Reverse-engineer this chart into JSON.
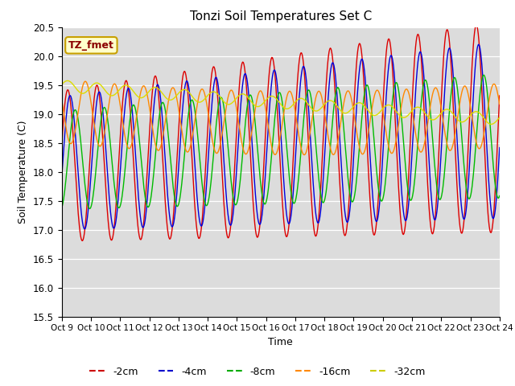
{
  "title": "Tonzi Soil Temperatures Set C",
  "xlabel": "Time",
  "ylabel": "Soil Temperature (C)",
  "ylim": [
    15.5,
    20.5
  ],
  "xlim": [
    0,
    360
  ],
  "bg_color": "#dcdcdc",
  "fig_color": "#ffffff",
  "annotation_text": "TZ_fmet",
  "annotation_bg": "#ffffcc",
  "annotation_border": "#c8a000",
  "tick_labels": [
    "Oct 9",
    "Oct 10",
    "Oct 11",
    "Oct 12",
    "Oct 13",
    "Oct 14",
    "Oct 15",
    "Oct 16",
    "Oct 17",
    "Oct 18",
    "Oct 19",
    "Oct 20",
    "Oct 21",
    "Oct 22",
    "Oct 23",
    "Oct 24"
  ],
  "legend_labels": [
    "-2cm",
    "-4cm",
    "-8cm",
    "-16cm",
    "-32cm"
  ],
  "legend_colors": [
    "#cc0000",
    "#0000cc",
    "#00aa00",
    "#ff8800",
    "#cccc00"
  ],
  "line_colors": {
    "m2": "#dd0000",
    "m4": "#0000dd",
    "m8": "#00bb00",
    "m16": "#ff8800",
    "m32": "#dddd00"
  },
  "total_hours": 360,
  "n_points": 720
}
